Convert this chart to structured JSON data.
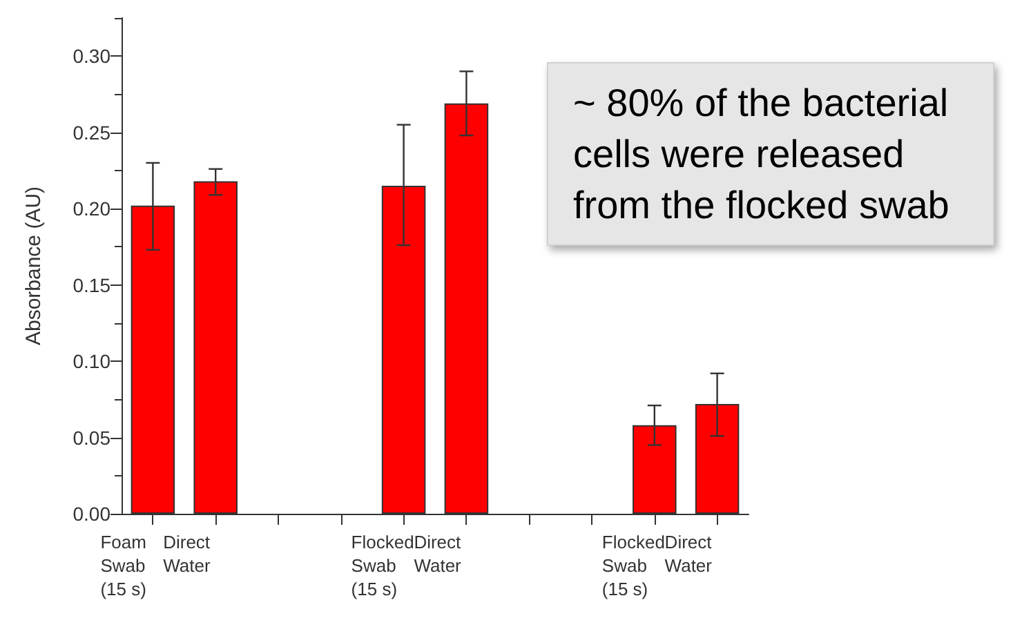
{
  "chart_data": {
    "type": "bar",
    "ylabel": "Absorbance (AU)",
    "categories": [
      "Foam\nSwab\n(15 s)",
      "Direct\nWater",
      null,
      null,
      "Flocked\nSwab\n(15 s)",
      "Direct\nWater",
      null,
      null,
      "Flocked\nSwab\n(15 s)",
      "Direct\nWater"
    ],
    "values": [
      0.202,
      0.218,
      null,
      null,
      0.215,
      0.269,
      null,
      null,
      0.058,
      0.072
    ],
    "errors": [
      [
        0.173,
        0.23
      ],
      [
        0.209,
        0.226
      ],
      null,
      null,
      [
        0.176,
        0.255
      ],
      [
        0.248,
        0.29
      ],
      null,
      null,
      [
        0.045,
        0.071
      ],
      [
        0.051,
        0.092
      ]
    ],
    "color": "#ff0000",
    "ylim": [
      0,
      0.325
    ],
    "yticks": [
      {
        "value": 0,
        "label": "0.00"
      },
      {
        "value": 0.05,
        "label": "0.05"
      },
      {
        "value": 0.1,
        "label": "0.10"
      },
      {
        "value": 0.15,
        "label": "0.15"
      },
      {
        "value": 0.2,
        "label": "0.20"
      },
      {
        "value": 0.25,
        "label": "0.25"
      },
      {
        "value": 0.3,
        "label": "0.30"
      }
    ],
    "annotations": [
      "~ 80% of the bacterial cells were released from the flocked swab"
    ],
    "grid": false
  }
}
